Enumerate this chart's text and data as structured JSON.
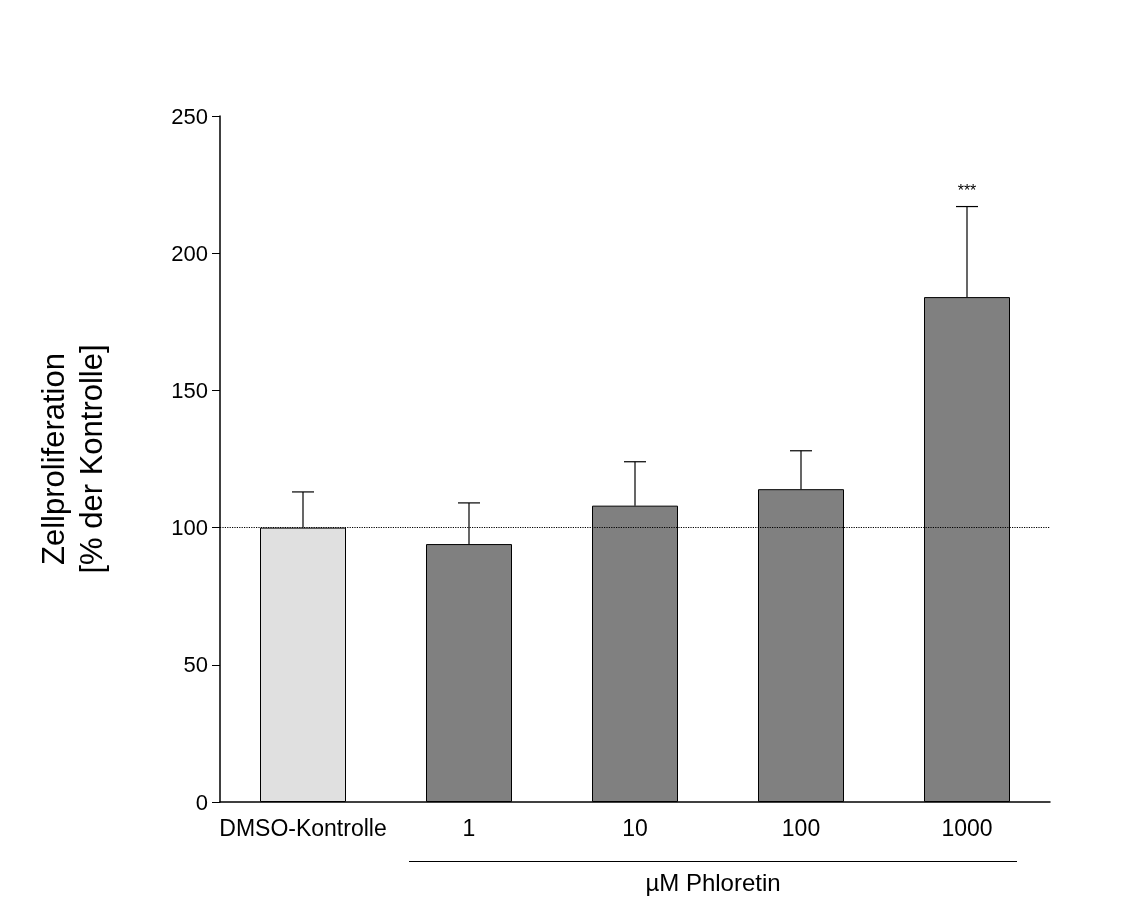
{
  "chart_data": {
    "type": "bar",
    "xlabel": "µM Phloretin",
    "ylabel": "Zellproliferation\n[% der Kontrolle]",
    "categories": [
      "DMSO-Kontrolle",
      "1",
      "10",
      "100",
      "1000"
    ],
    "values": [
      100,
      94,
      108,
      114,
      184
    ],
    "colors": [
      "#e0e0e0",
      "#808080",
      "#808080",
      "#808080",
      "#808080"
    ],
    "errors": [
      [
        100,
        113
      ],
      [
        94,
        109
      ],
      [
        108,
        124
      ],
      [
        114,
        128
      ],
      [
        184,
        217
      ]
    ],
    "ylim": [
      0,
      250
    ],
    "yticks": [
      0,
      50,
      100,
      150,
      200,
      250
    ],
    "ref_lines": [
      {
        "axis": "y",
        "value": 100,
        "color": "#000000",
        "line_style": "dotted"
      }
    ],
    "annotations": [
      {
        "text": "***",
        "x": "1000",
        "y": 217
      }
    ],
    "grid": false
  }
}
